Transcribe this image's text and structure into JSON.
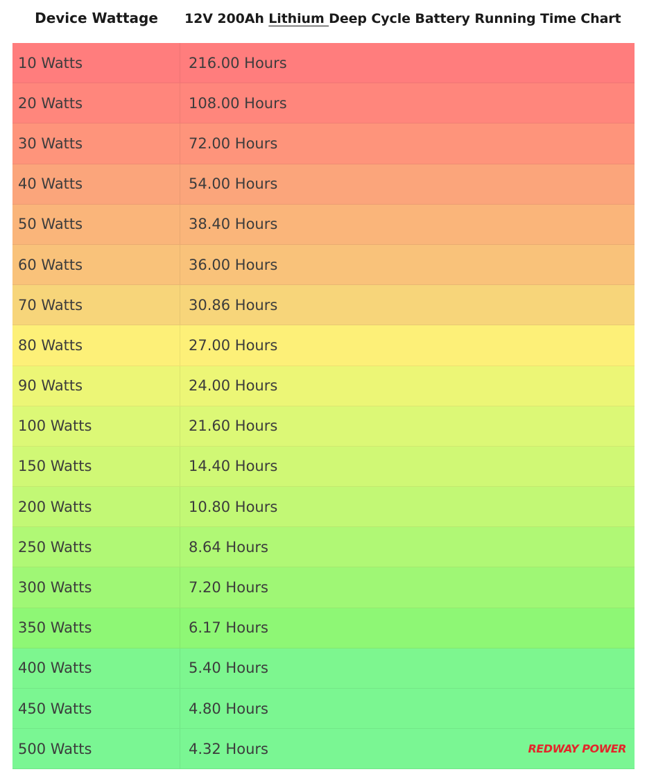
{
  "header": {
    "col1": "Device Wattage",
    "col2_prefix": "12V 200Ah ",
    "col2_link": "Lithium ",
    "col2_suffix": "Deep Cycle Battery Running Time Chart"
  },
  "logo_text": "REDWAY POWER",
  "chart_data": {
    "type": "table",
    "columns": [
      "Device Wattage",
      "12V 200Ah Lithium Deep Cycle Battery Running Time Chart"
    ],
    "rows": [
      {
        "watt": "10 Watts",
        "hours": "216.00 Hours",
        "color": "#ff7d7d"
      },
      {
        "watt": "20 Watts",
        "hours": "108.00 Hours",
        "color": "#ff867c"
      },
      {
        "watt": "30 Watts",
        "hours": "72.00 Hours",
        "color": "#fe947b"
      },
      {
        "watt": "40 Watts",
        "hours": "54.00 Hours",
        "color": "#fba57b"
      },
      {
        "watt": "50 Watts",
        "hours": "38.40 Hours",
        "color": "#fab57a"
      },
      {
        "watt": "60 Watts",
        "hours": "36.00 Hours",
        "color": "#f9c27a"
      },
      {
        "watt": "70 Watts",
        "hours": "30.86 Hours",
        "color": "#f7d57a"
      },
      {
        "watt": "80 Watts",
        "hours": "27.00 Hours",
        "color": "#fdf078"
      },
      {
        "watt": "90 Watts",
        "hours": "24.00 Hours",
        "color": "#ecf676"
      },
      {
        "watt": "100 Watts",
        "hours": "21.60 Hours",
        "color": "#dcf876"
      },
      {
        "watt": "150 Watts",
        "hours": "14.40 Hours",
        "color": "#d0f875"
      },
      {
        "watt": "200 Watts",
        "hours": "10.80 Hours",
        "color": "#c2f875"
      },
      {
        "watt": "250 Watts",
        "hours": "8.64 Hours",
        "color": "#b0f875"
      },
      {
        "watt": "300 Watts",
        "hours": "7.20 Hours",
        "color": "#9ff775"
      },
      {
        "watt": "350 Watts",
        "hours": "6.17 Hours",
        "color": "#8ef775"
      },
      {
        "watt": "400 Watts",
        "hours": "5.40 Hours",
        "color": "#7df68f"
      },
      {
        "watt": "450 Watts",
        "hours": "4.80 Hours",
        "color": "#7bf691"
      },
      {
        "watt": "500 Watts",
        "hours": "4.32 Hours",
        "color": "#7af693"
      }
    ]
  }
}
